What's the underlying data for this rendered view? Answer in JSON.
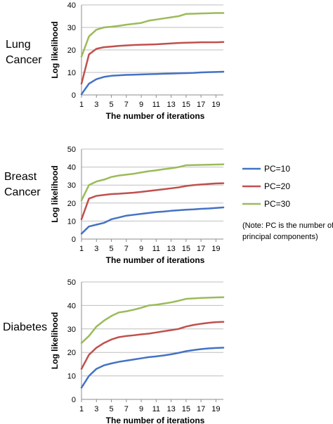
{
  "legend": {
    "items": [
      {
        "label": "PC=10",
        "color": "#4472C4"
      },
      {
        "label": "PC=20",
        "color": "#C0504D"
      },
      {
        "label": "PC=30",
        "color": "#9BBB59"
      }
    ],
    "note_lines": [
      "(Note: PC is the number of",
      "principal components)"
    ]
  },
  "chart_data": [
    {
      "type": "line",
      "panel_label": [
        "Lung",
        "Cancer"
      ],
      "xlabel": "The number of iterations",
      "ylabel": "Log likelihood",
      "ylim": [
        0,
        40
      ],
      "yticks": [
        0,
        10,
        20,
        30,
        40
      ],
      "xticks": [
        1,
        3,
        5,
        7,
        9,
        11,
        13,
        15,
        17,
        19
      ],
      "xlim": [
        1,
        20
      ],
      "grid": "horizontal",
      "x": [
        1,
        2,
        3,
        4,
        5,
        6,
        7,
        8,
        9,
        10,
        11,
        12,
        13,
        14,
        15,
        16,
        17,
        18,
        19,
        20
      ],
      "series": [
        {
          "name": "PC=10",
          "color": "#4472C4",
          "values": [
            0.3,
            5,
            7,
            8,
            8.5,
            8.7,
            8.9,
            9,
            9.1,
            9.2,
            9.3,
            9.4,
            9.5,
            9.6,
            9.7,
            9.8,
            10,
            10.1,
            10.2,
            10.3
          ]
        },
        {
          "name": "PC=20",
          "color": "#C0504D",
          "values": [
            5,
            18,
            20.5,
            21.2,
            21.5,
            21.8,
            22,
            22.2,
            22.3,
            22.4,
            22.5,
            22.7,
            22.9,
            23.1,
            23.2,
            23.3,
            23.4,
            23.4,
            23.4,
            23.5
          ]
        },
        {
          "name": "PC=30",
          "color": "#9BBB59",
          "values": [
            17,
            26,
            29,
            30,
            30.3,
            30.7,
            31.2,
            31.6,
            32,
            33,
            33.5,
            34,
            34.5,
            35,
            36,
            36.1,
            36.2,
            36.3,
            36.4,
            36.4
          ]
        }
      ]
    },
    {
      "type": "line",
      "panel_label": [
        "Breast",
        "Cancer"
      ],
      "xlabel": "The number of iterations",
      "ylabel": "Log likelihood",
      "ylim": [
        0,
        50
      ],
      "yticks": [
        0,
        10,
        20,
        30,
        40,
        50
      ],
      "xticks": [
        1,
        3,
        5,
        7,
        9,
        11,
        13,
        15,
        17,
        19
      ],
      "xlim": [
        1,
        20
      ],
      "grid": "horizontal",
      "x": [
        1,
        2,
        3,
        4,
        5,
        6,
        7,
        8,
        9,
        10,
        11,
        12,
        13,
        14,
        15,
        16,
        17,
        18,
        19,
        20
      ],
      "series": [
        {
          "name": "PC=10",
          "color": "#4472C4",
          "values": [
            3,
            7,
            8,
            9,
            11,
            12,
            13,
            13.5,
            14,
            14.5,
            15,
            15.3,
            15.7,
            16,
            16.3,
            16.5,
            16.8,
            17,
            17.3,
            17.6
          ]
        },
        {
          "name": "PC=20",
          "color": "#C0504D",
          "values": [
            11,
            22.5,
            24,
            24.5,
            25,
            25.2,
            25.5,
            25.8,
            26.2,
            26.7,
            27.2,
            27.7,
            28.2,
            28.7,
            29.5,
            30,
            30.3,
            30.6,
            30.9,
            31
          ]
        },
        {
          "name": "PC=30",
          "color": "#9BBB59",
          "values": [
            21.5,
            30,
            32,
            33,
            34.5,
            35.3,
            35.8,
            36.3,
            37,
            37.7,
            38.2,
            38.8,
            39.3,
            40,
            41,
            41.1,
            41.2,
            41.3,
            41.4,
            41.5
          ]
        }
      ]
    },
    {
      "type": "line",
      "panel_label": [
        "Diabetes"
      ],
      "xlabel": "The number of iterations",
      "ylabel": "Log likelihood",
      "ylim": [
        0,
        50
      ],
      "yticks": [
        0,
        10,
        20,
        30,
        40,
        50
      ],
      "xticks": [
        1,
        3,
        5,
        7,
        9,
        11,
        13,
        15,
        17,
        19
      ],
      "xlim": [
        1,
        20
      ],
      "grid": "horizontal",
      "x": [
        1,
        2,
        3,
        4,
        5,
        6,
        7,
        8,
        9,
        10,
        11,
        12,
        13,
        14,
        15,
        16,
        17,
        18,
        19,
        20
      ],
      "series": [
        {
          "name": "PC=10",
          "color": "#4472C4",
          "values": [
            5,
            10,
            13,
            14.5,
            15.3,
            16,
            16.5,
            17,
            17.5,
            18,
            18.3,
            18.7,
            19.2,
            19.8,
            20.5,
            21,
            21.4,
            21.7,
            21.9,
            22
          ]
        },
        {
          "name": "PC=20",
          "color": "#C0504D",
          "values": [
            13,
            19,
            22,
            24,
            25.5,
            26.5,
            27,
            27.3,
            27.7,
            28,
            28.5,
            29,
            29.5,
            30,
            31,
            31.7,
            32.2,
            32.6,
            32.9,
            33
          ]
        },
        {
          "name": "PC=30",
          "color": "#9BBB59",
          "values": [
            24,
            27,
            31,
            33.5,
            35.5,
            37,
            37.5,
            38.2,
            39,
            40,
            40.3,
            40.8,
            41.3,
            42,
            42.8,
            43,
            43.2,
            43.3,
            43.4,
            43.5
          ]
        }
      ]
    }
  ]
}
